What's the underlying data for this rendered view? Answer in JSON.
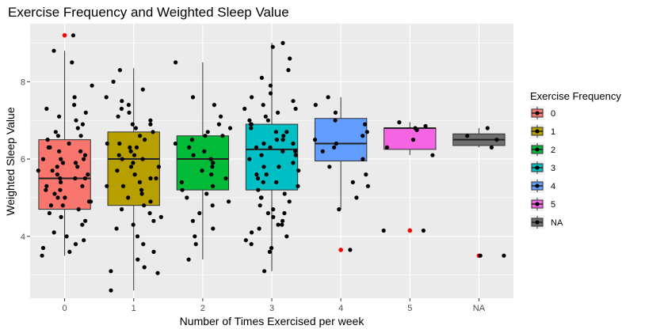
{
  "chart_data": {
    "type": "box",
    "title": "Exercise Frequency and Weighted Sleep Value",
    "xlabel": "Number of Times Exercised per week",
    "ylabel": "Weighted Sleep Value",
    "categories": [
      "0",
      "1",
      "2",
      "3",
      "4",
      "5",
      "NA"
    ],
    "y_ticks": [
      4,
      6,
      8
    ],
    "ylim": [
      2.4,
      9.5
    ],
    "grid": true,
    "legend": {
      "title": "Exercise Frequency",
      "position": "right",
      "entries": [
        "0",
        "1",
        "2",
        "3",
        "4",
        "5",
        "NA"
      ]
    },
    "colors": {
      "0": "#F8766D",
      "1": "#B79F00",
      "2": "#00BA38",
      "3": "#00BFC4",
      "4": "#619CFF",
      "5": "#F564E3",
      "NA": "#6F6F6F",
      "outlier": "#FF0000",
      "points": "#000000",
      "panel": "#EBEBEB",
      "grid": "#FFFFFF"
    },
    "boxes": [
      {
        "category": "0",
        "q1": 4.7,
        "median": 5.5,
        "q3": 6.5,
        "lower_whisker": 3.5,
        "upper_whisker": 8.8,
        "outliers": [
          9.2
        ]
      },
      {
        "category": "1",
        "q1": 4.8,
        "median": 6.0,
        "q3": 6.7,
        "lower_whisker": 2.6,
        "upper_whisker": 8.35,
        "outliers": []
      },
      {
        "category": "2",
        "q1": 5.2,
        "median": 6.0,
        "q3": 6.6,
        "lower_whisker": 3.4,
        "upper_whisker": 8.5,
        "outliers": []
      },
      {
        "category": "3",
        "q1": 5.2,
        "median": 6.25,
        "q3": 6.9,
        "lower_whisker": 3.1,
        "upper_whisker": 9.0,
        "outliers": []
      },
      {
        "category": "4",
        "q1": 5.95,
        "median": 6.4,
        "q3": 7.05,
        "lower_whisker": 4.7,
        "upper_whisker": 7.6,
        "outliers": [
          3.65
        ]
      },
      {
        "category": "5",
        "q1": 6.25,
        "median": 6.8,
        "q3": 6.8,
        "lower_whisker": 6.1,
        "upper_whisker": 6.95,
        "outliers": [
          4.15
        ]
      },
      {
        "category": "NA",
        "q1": 6.35,
        "median": 6.5,
        "q3": 6.65,
        "lower_whisker": 6.3,
        "upper_whisker": 6.8,
        "outliers": [
          3.5
        ]
      }
    ],
    "jitter_points": {
      "0": [
        9.2,
        8.8,
        8.5,
        7.9,
        7.6,
        7.4,
        7.3,
        7.2,
        7.0,
        6.9,
        6.8,
        6.7,
        6.6,
        6.5,
        6.4,
        6.3,
        6.3,
        6.2,
        6.1,
        6.0,
        6.0,
        5.9,
        5.8,
        5.8,
        5.7,
        5.6,
        5.6,
        5.5,
        5.5,
        5.4,
        5.3,
        5.3,
        5.2,
        5.1,
        5.0,
        5.0,
        4.9,
        4.8,
        4.7,
        4.6,
        4.5,
        4.4,
        4.3,
        4.1,
        4.0,
        3.9,
        3.8,
        3.7,
        3.6,
        3.5,
        5.5,
        6.2,
        5.9,
        4.8,
        6.6,
        7.1,
        5.2,
        4.9,
        6.0,
        5.7
      ],
      "1": [
        8.3,
        8.0,
        7.8,
        7.6,
        7.5,
        7.3,
        7.2,
        7.1,
        7.0,
        6.9,
        6.8,
        6.7,
        6.6,
        6.5,
        6.4,
        6.3,
        6.2,
        6.1,
        6.0,
        6.0,
        5.9,
        5.8,
        5.7,
        5.6,
        5.5,
        5.4,
        5.3,
        5.2,
        5.1,
        5.0,
        4.9,
        4.8,
        4.7,
        4.6,
        4.5,
        4.3,
        4.2,
        4.0,
        3.8,
        3.6,
        3.4,
        3.2,
        3.1,
        3.05,
        2.6,
        6.4,
        5.8,
        6.9,
        5.3,
        4.4,
        6.1,
        5.5,
        7.4,
        6.3
      ],
      "2": [
        8.5,
        7.6,
        7.4,
        7.1,
        6.9,
        6.8,
        6.7,
        6.6,
        6.5,
        6.4,
        6.3,
        6.2,
        6.0,
        5.9,
        5.8,
        5.7,
        5.6,
        5.5,
        5.3,
        5.2,
        5.1,
        5.0,
        4.8,
        4.6,
        4.4,
        4.2,
        4.0,
        3.8,
        3.4,
        6.1,
        5.4,
        6.6,
        4.9
      ],
      "3": [
        9.0,
        8.9,
        8.6,
        8.3,
        8.1,
        7.9,
        7.7,
        7.6,
        7.5,
        7.4,
        7.3,
        7.2,
        7.1,
        7.0,
        6.9,
        6.9,
        6.8,
        6.7,
        6.6,
        6.5,
        6.4,
        6.3,
        6.3,
        6.2,
        6.1,
        6.0,
        5.9,
        5.8,
        5.7,
        5.6,
        5.5,
        5.4,
        5.3,
        5.2,
        5.1,
        5.0,
        4.9,
        4.8,
        4.7,
        4.6,
        4.5,
        4.4,
        4.3,
        4.2,
        4.1,
        4.0,
        3.9,
        3.8,
        3.7,
        3.6,
        3.1,
        6.2,
        5.8,
        6.7,
        5.4,
        7.0,
        4.6,
        6.5,
        5.0,
        6.1,
        7.3,
        4.3,
        5.6,
        6.4
      ],
      "4": [
        7.6,
        7.4,
        7.2,
        7.0,
        6.9,
        6.7,
        6.5,
        6.4,
        6.3,
        6.2,
        6.0,
        5.8,
        5.6,
        5.4,
        5.3,
        5.0,
        4.7,
        3.65,
        6.6
      ],
      "5": [
        6.95,
        6.85,
        6.8,
        6.75,
        6.5,
        6.3,
        6.1,
        4.15,
        4.15
      ],
      "NA": [
        6.8,
        6.6,
        6.5,
        6.3,
        3.5,
        3.5
      ]
    }
  }
}
